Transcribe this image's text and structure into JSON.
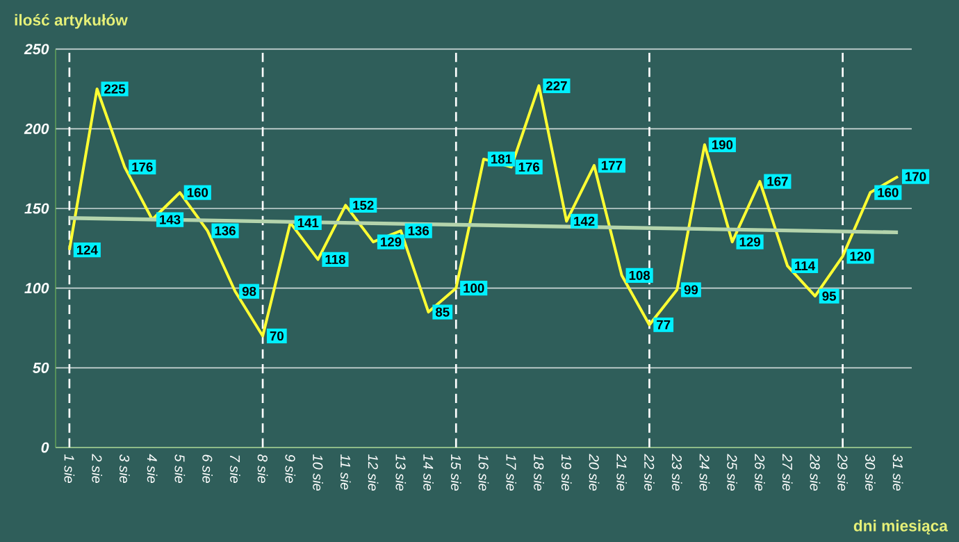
{
  "chart_data": {
    "type": "line",
    "xlabel": "dni miesiąca",
    "ylabel": "ilość artykułów",
    "categories": [
      "1 sie",
      "2 sie",
      "3 sie",
      "4 sie",
      "5 sie",
      "6 sie",
      "7 sie",
      "8 sie",
      "9 sie",
      "10 sie",
      "11 sie",
      "12 sie",
      "13 sie",
      "14 sie",
      "15 sie",
      "16 sie",
      "17 sie",
      "18 sie",
      "19 sie",
      "20 sie",
      "21 sie",
      "22 sie",
      "23 sie",
      "24 sie",
      "25 sie",
      "26 sie",
      "27 sie",
      "28 sie",
      "29 sie",
      "30 sie",
      "31 sie"
    ],
    "series": [
      {
        "color": "#ffff33",
        "data_labels": true,
        "values": [
          124,
          225,
          176,
          143,
          160,
          136,
          98,
          70,
          141,
          118,
          152,
          129,
          136,
          85,
          100,
          181,
          176,
          227,
          142,
          177,
          108,
          77,
          99,
          190,
          129,
          167,
          114,
          95,
          120,
          160,
          170
        ]
      },
      {
        "color": "#b4d4ac",
        "values": [
          144,
          null,
          null,
          null,
          null,
          null,
          null,
          null,
          null,
          null,
          null,
          null,
          null,
          null,
          null,
          null,
          null,
          null,
          null,
          null,
          null,
          null,
          null,
          null,
          null,
          null,
          null,
          null,
          null,
          null,
          135
        ]
      }
    ],
    "ylim": [
      0,
      250
    ],
    "yticks": [
      0,
      50,
      100,
      150,
      200,
      250
    ],
    "grid": "y",
    "ref_lines": [
      {
        "axis": "x",
        "value": "1 sie",
        "color": "#ffffff",
        "line_style": "dashed"
      },
      {
        "axis": "x",
        "value": "8 sie",
        "color": "#ffffff",
        "line_style": "dashed"
      },
      {
        "axis": "x",
        "value": "15 sie",
        "color": "#ffffff",
        "line_style": "dashed"
      },
      {
        "axis": "x",
        "value": "22 sie",
        "color": "#ffffff",
        "line_style": "dashed"
      },
      {
        "axis": "x",
        "value": "29 sie",
        "color": "#ffffff",
        "line_style": "dashed"
      }
    ]
  }
}
